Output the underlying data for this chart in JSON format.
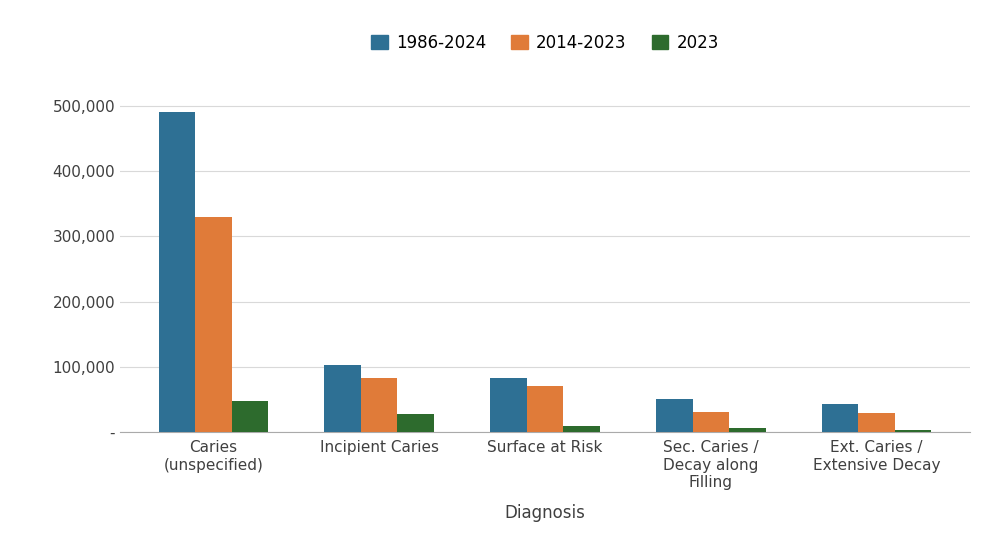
{
  "categories": [
    "Caries\n(unspecified)",
    "Incipient Caries",
    "Surface at Risk",
    "Sec. Caries /\nDecay along\nFilling",
    "Ext. Caries /\nExtensive Decay"
  ],
  "series": [
    {
      "label": "1986-2024",
      "color": "#2e7094",
      "values": [
        490000,
        103000,
        83000,
        50000,
        43000
      ]
    },
    {
      "label": "2014-2023",
      "color": "#e07b39",
      "values": [
        330000,
        83000,
        70000,
        31000,
        30000
      ]
    },
    {
      "label": "2023",
      "color": "#2d6b2d",
      "values": [
        48000,
        27000,
        9000,
        6000,
        4000
      ]
    }
  ],
  "ylim": [
    0,
    560000
  ],
  "yticks": [
    0,
    100000,
    200000,
    300000,
    400000,
    500000
  ],
  "ytick_labels": [
    "-",
    "100,000",
    "200,000",
    "300,000",
    "400,000",
    "500,000"
  ],
  "xlabel": "Diagnosis",
  "ylabel": "",
  "title": "",
  "legend_loc": "upper center",
  "legend_ncol": 3,
  "bar_width": 0.22,
  "background_color": "#ffffff",
  "grid_color": "#d9d9d9",
  "figsize": [
    10.0,
    5.54
  ],
  "dpi": 100
}
